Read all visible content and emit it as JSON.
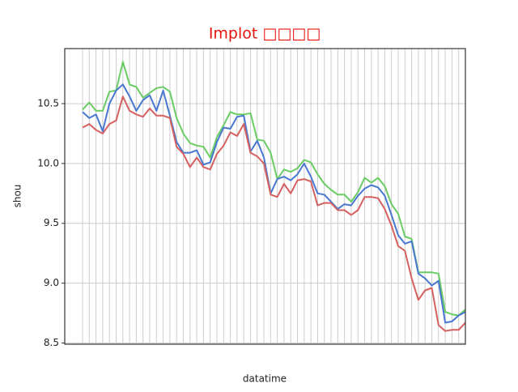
{
  "chart_data": {
    "type": "line",
    "title": "Implot □□□□",
    "xlabel": "datatime",
    "ylabel": "shou",
    "categories": [
      null,
      null,
      null,
      null,
      null,
      null,
      null,
      null,
      null,
      null,
      null,
      null,
      null,
      null,
      null,
      null,
      null,
      null,
      null,
      null,
      null,
      null,
      null,
      null,
      null,
      null,
      null,
      null,
      null,
      null,
      null,
      null,
      null,
      null,
      null,
      null,
      null,
      null,
      null,
      null,
      null,
      null,
      null,
      null,
      null,
      null,
      null,
      null,
      null,
      null,
      null,
      null,
      null,
      null,
      null,
      null,
      null,
      null
    ],
    "series": [
      {
        "color": "#6acc64",
        "values": [
          10.45,
          10.51,
          10.44,
          10.44,
          10.6,
          10.61,
          10.85,
          10.66,
          10.64,
          10.55,
          10.59,
          10.63,
          10.64,
          10.6,
          10.38,
          10.25,
          10.17,
          10.15,
          10.14,
          10.05,
          10.22,
          10.32,
          10.43,
          10.41,
          10.41,
          10.42,
          10.2,
          10.19,
          10.09,
          9.87,
          9.95,
          9.93,
          9.96,
          10.03,
          10.01,
          9.91,
          9.83,
          9.78,
          9.74,
          9.74,
          9.68,
          9.76,
          9.88,
          9.84,
          9.88,
          9.81,
          9.66,
          9.58,
          9.39,
          9.37,
          9.09,
          9.09,
          9.09,
          9.08,
          8.76,
          8.74,
          8.73,
          8.78
        ]
      },
      {
        "color": "#4878d0",
        "values": [
          10.43,
          10.38,
          10.41,
          10.27,
          10.5,
          10.61,
          10.66,
          10.56,
          10.44,
          10.53,
          10.57,
          10.44,
          10.61,
          10.4,
          10.18,
          10.09,
          10.09,
          10.11,
          9.99,
          10.01,
          10.18,
          10.3,
          10.29,
          10.39,
          10.4,
          10.1,
          10.19,
          10.05,
          9.75,
          9.87,
          9.89,
          9.86,
          9.91,
          10.0,
          9.89,
          9.75,
          9.74,
          9.68,
          9.62,
          9.66,
          9.65,
          9.73,
          9.79,
          9.82,
          9.8,
          9.73,
          9.57,
          9.4,
          9.33,
          9.35,
          9.08,
          9.04,
          8.98,
          9.02,
          8.67,
          8.68,
          8.73,
          8.76
        ]
      },
      {
        "color": "#d65f5f",
        "values": [
          10.3,
          10.33,
          10.28,
          10.25,
          10.33,
          10.36,
          10.56,
          10.44,
          10.41,
          10.39,
          10.46,
          10.4,
          10.4,
          10.38,
          10.14,
          10.08,
          9.97,
          10.05,
          9.97,
          9.95,
          10.08,
          10.15,
          10.26,
          10.23,
          10.33,
          10.09,
          10.06,
          10.0,
          9.74,
          9.72,
          9.83,
          9.75,
          9.86,
          9.87,
          9.85,
          9.65,
          9.67,
          9.67,
          9.61,
          9.61,
          9.57,
          9.61,
          9.72,
          9.72,
          9.71,
          9.62,
          9.48,
          9.31,
          9.27,
          9.04,
          8.86,
          8.94,
          8.96,
          8.65,
          8.6,
          8.61,
          8.61,
          8.67
        ]
      }
    ],
    "ylim": [
      8.49,
      10.96
    ],
    "yticks": [
      8.5,
      {
        "value": 9,
        "label": "9.0"
      },
      9.5,
      {
        "value": 10,
        "label": "10.0"
      },
      10.5
    ],
    "grid": true
  }
}
